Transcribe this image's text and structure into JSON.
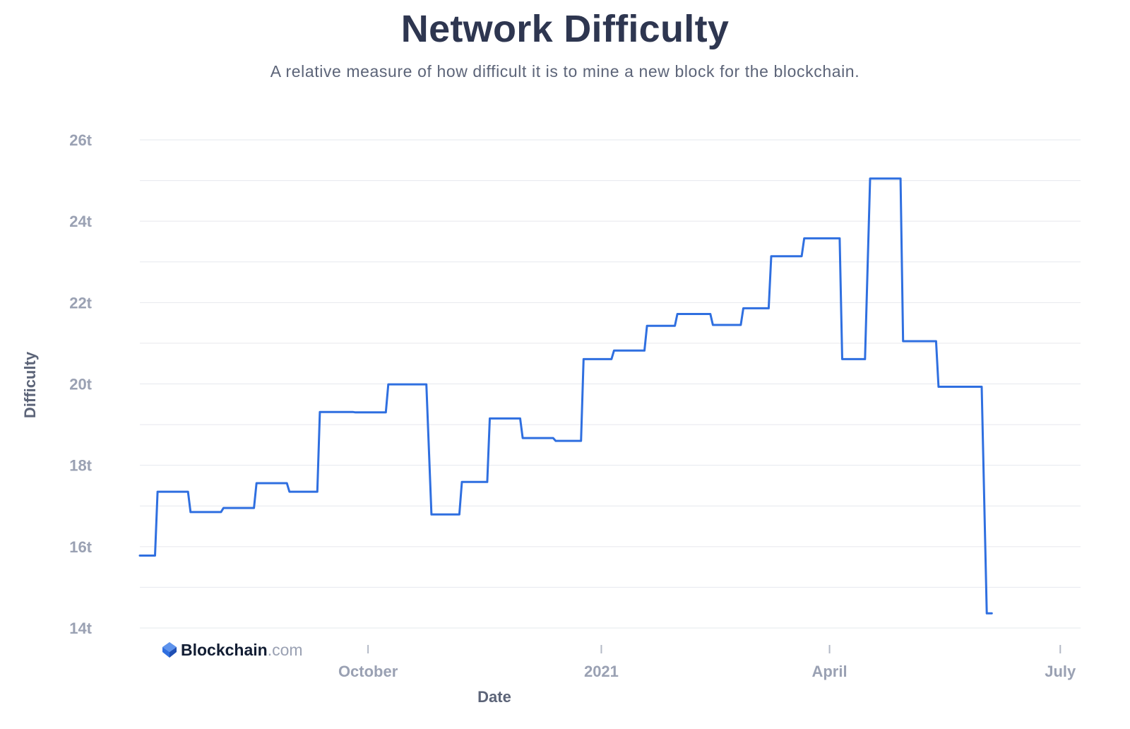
{
  "title": "Network Difficulty",
  "subtitle": "A relative measure of how difficult it is to mine a new block for the blockchain.",
  "brand": {
    "name": "Blockchain",
    "suffix": ".com",
    "icon": "blockchain-logo-icon"
  },
  "colors": {
    "line": "#2f6fe0",
    "grid": "#e6e8ee",
    "tick_text": "#9aa1b3",
    "title": "#2e3650",
    "axis_title": "#5c6478",
    "logo": "#2f6fe0"
  },
  "chart_data": {
    "type": "line",
    "title": "Network Difficulty",
    "subtitle": "A relative measure of how difficult it is to mine a new block for the blockchain.",
    "xlabel": "Date",
    "ylabel": "Difficulty",
    "ylim": [
      14,
      26
    ],
    "xlim": [
      "2020-07-03",
      "2021-07-09"
    ],
    "y_ticks": [
      14,
      16,
      18,
      20,
      22,
      24,
      26
    ],
    "y_tick_labels": [
      "14t",
      "16t",
      "18t",
      "20t",
      "22t",
      "24t",
      "26t"
    ],
    "x_ticks": [
      {
        "label": "October",
        "date": "2020-10-01"
      },
      {
        "label": "2021",
        "date": "2021-01-01"
      },
      {
        "label": "April",
        "date": "2021-04-01"
      },
      {
        "label": "July",
        "date": "2021-07-01"
      }
    ],
    "grid": true,
    "legend": "none",
    "series": [
      {
        "points": [
          [
            "2020-07-03",
            15.78
          ],
          [
            "2020-07-09",
            15.78
          ],
          [
            "2020-07-10",
            17.35
          ],
          [
            "2020-07-22",
            17.35
          ],
          [
            "2020-07-23",
            16.85
          ],
          [
            "2020-08-04",
            16.85
          ],
          [
            "2020-08-05",
            16.95
          ],
          [
            "2020-08-17",
            16.95
          ],
          [
            "2020-08-18",
            17.56
          ],
          [
            "2020-08-30",
            17.56
          ],
          [
            "2020-08-31",
            17.35
          ],
          [
            "2020-09-11",
            17.35
          ],
          [
            "2020-09-12",
            19.31
          ],
          [
            "2020-09-25",
            19.31
          ],
          [
            "2020-09-26",
            19.3
          ],
          [
            "2020-10-08",
            19.3
          ],
          [
            "2020-10-09",
            19.99
          ],
          [
            "2020-10-24",
            19.99
          ],
          [
            "2020-10-26",
            16.79
          ],
          [
            "2020-11-06",
            16.79
          ],
          [
            "2020-11-07",
            17.59
          ],
          [
            "2020-11-17",
            17.59
          ],
          [
            "2020-11-18",
            19.15
          ],
          [
            "2020-11-30",
            19.15
          ],
          [
            "2020-12-01",
            18.67
          ],
          [
            "2020-12-13",
            18.67
          ],
          [
            "2020-12-14",
            18.6
          ],
          [
            "2020-12-24",
            18.6
          ],
          [
            "2020-12-25",
            20.61
          ],
          [
            "2021-01-05",
            20.61
          ],
          [
            "2021-01-06",
            20.82
          ],
          [
            "2021-01-18",
            20.82
          ],
          [
            "2021-01-19",
            21.43
          ],
          [
            "2021-01-30",
            21.43
          ],
          [
            "2021-01-31",
            21.72
          ],
          [
            "2021-02-13",
            21.72
          ],
          [
            "2021-02-14",
            21.45
          ],
          [
            "2021-02-25",
            21.45
          ],
          [
            "2021-02-26",
            21.86
          ],
          [
            "2021-03-08",
            21.86
          ],
          [
            "2021-03-09",
            23.14
          ],
          [
            "2021-03-21",
            23.14
          ],
          [
            "2021-03-22",
            23.58
          ],
          [
            "2021-04-05",
            23.58
          ],
          [
            "2021-04-06",
            20.61
          ],
          [
            "2021-04-15",
            20.61
          ],
          [
            "2021-04-17",
            25.05
          ],
          [
            "2021-04-29",
            25.05
          ],
          [
            "2021-04-30",
            21.05
          ],
          [
            "2021-05-13",
            21.05
          ],
          [
            "2021-05-14",
            19.93
          ],
          [
            "2021-05-31",
            19.93
          ],
          [
            "2021-06-02",
            14.36
          ],
          [
            "2021-06-04",
            14.36
          ]
        ]
      }
    ]
  }
}
